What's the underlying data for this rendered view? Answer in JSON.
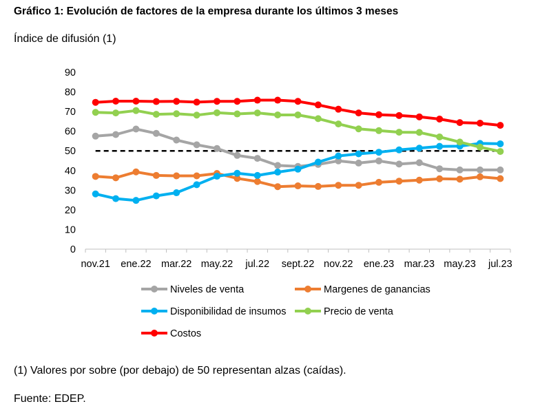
{
  "header": {
    "title": "Gráfico 1: Evolución de factores de la empresa durante los últimos 3 meses",
    "subtitle": "Índice de difusión (1)"
  },
  "footer": {
    "note": "(1) Valores por sobre (por debajo) de 50 representan alzas (caídas).",
    "source": "Fuente: EDEP."
  },
  "chart_data": {
    "type": "line",
    "title": "Gráfico 1: Evolución de factores de la empresa durante los últimos 3 meses",
    "ylabel": "Índice de difusión (1)",
    "xlabel": "",
    "ylim": [
      0,
      90
    ],
    "yticks": [
      0,
      10,
      20,
      30,
      40,
      50,
      60,
      70,
      80,
      90
    ],
    "categories": [
      "nov.21",
      "dic.21",
      "ene.22",
      "feb.22",
      "mar.22",
      "abr.22",
      "may.22",
      "jun.22",
      "jul.22",
      "ago.22",
      "sept.22",
      "oct.22",
      "nov.22",
      "dic.22",
      "ene.23",
      "feb.23",
      "mar.23",
      "abr.23",
      "may.23",
      "jun.23",
      "jul.23"
    ],
    "xtick_labels": [
      {
        "index": 0,
        "label": "nov.21"
      },
      {
        "index": 2,
        "label": "ene.22"
      },
      {
        "index": 4,
        "label": "mar.22"
      },
      {
        "index": 6,
        "label": "may.22"
      },
      {
        "index": 8,
        "label": "jul.22"
      },
      {
        "index": 10,
        "label": "sept.22"
      },
      {
        "index": 12,
        "label": "nov.22"
      },
      {
        "index": 14,
        "label": "ene.23"
      },
      {
        "index": 16,
        "label": "mar.23"
      },
      {
        "index": 18,
        "label": "may.23"
      },
      {
        "index": 20,
        "label": "jul.23"
      }
    ],
    "reference_line": {
      "value": 50,
      "style": "dashed",
      "color": "#000000"
    },
    "series": [
      {
        "name": "Niveles de venta",
        "color": "#a5a5a5",
        "values": [
          57.5,
          58.3,
          61.1,
          58.9,
          55.5,
          53.1,
          51.2,
          47.7,
          46.2,
          42.6,
          42.1,
          43.1,
          44.9,
          43.8,
          44.9,
          43.3,
          44.0,
          40.9,
          40.3,
          40.3,
          40.3
        ]
      },
      {
        "name": "Margenes de ganancias",
        "color": "#ed7d31",
        "values": [
          37.0,
          36.3,
          39.3,
          37.5,
          37.3,
          37.3,
          38.5,
          36.0,
          34.4,
          31.8,
          32.2,
          31.9,
          32.5,
          32.5,
          34.0,
          34.6,
          35.1,
          35.8,
          35.6,
          36.8,
          35.9
        ]
      },
      {
        "name": "Disponibilidad de insumos",
        "color": "#00b0f0",
        "values": [
          28.1,
          25.7,
          24.8,
          27.1,
          28.7,
          32.8,
          37.1,
          38.6,
          37.5,
          39.2,
          40.7,
          44.3,
          47.4,
          48.5,
          49.3,
          50.5,
          51.4,
          52.3,
          52.4,
          53.8,
          53.6
        ]
      },
      {
        "name": "Precio de venta",
        "color": "#92d050",
        "values": [
          69.6,
          69.3,
          70.5,
          68.6,
          68.9,
          68.2,
          69.4,
          68.8,
          69.3,
          68.3,
          68.3,
          66.4,
          63.7,
          61.2,
          60.3,
          59.5,
          59.4,
          57.1,
          54.5,
          51.9,
          49.7
        ]
      },
      {
        "name": "Costos",
        "color": "#ff0000",
        "values": [
          74.7,
          75.3,
          75.3,
          75.1,
          75.2,
          74.8,
          75.2,
          75.2,
          75.8,
          75.8,
          75.2,
          73.4,
          71.2,
          69.3,
          68.4,
          68.0,
          67.3,
          66.2,
          64.4,
          64.1,
          63.0
        ]
      }
    ],
    "legend": {
      "placement": "bottom",
      "columns": 2
    },
    "grid": false
  }
}
